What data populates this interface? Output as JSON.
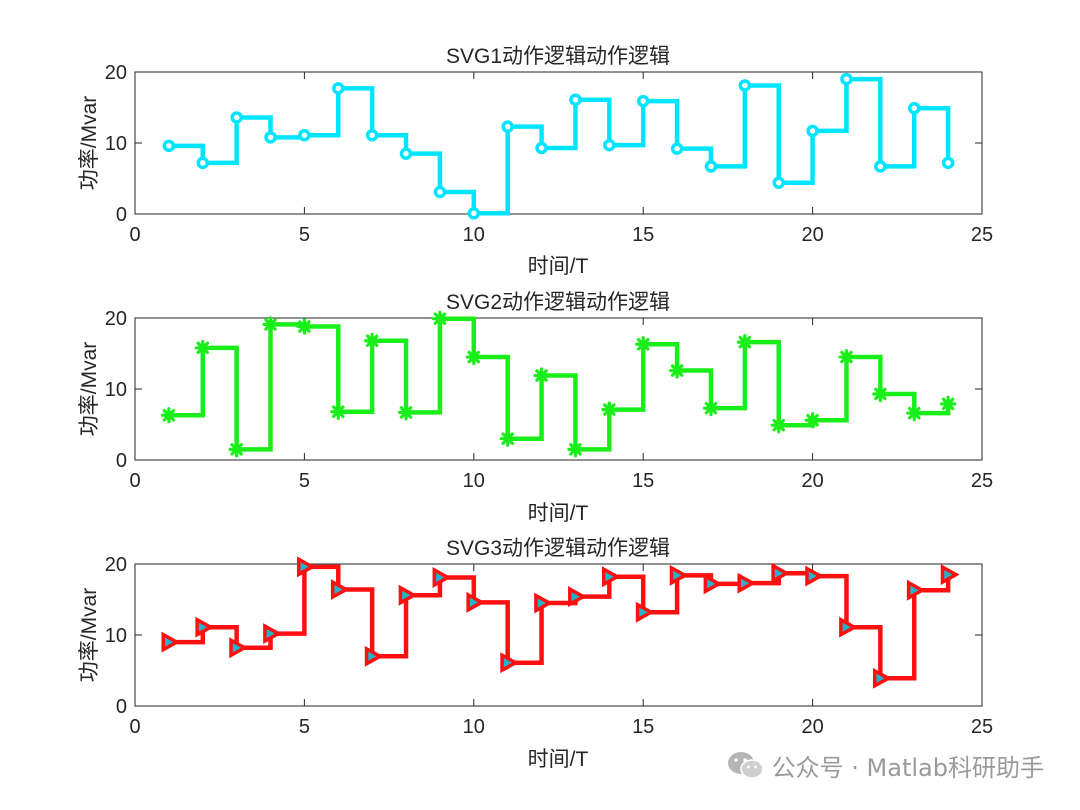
{
  "chart_data": [
    {
      "type": "line",
      "title": "SVG1动作逻辑动作逻辑",
      "xlabel": "时间/T",
      "ylabel": "功率/Mvar",
      "xlim": [
        0,
        25
      ],
      "ylim": [
        0,
        20
      ],
      "xticks": [
        0,
        5,
        10,
        15,
        20,
        25
      ],
      "yticks": [
        0,
        10,
        20
      ],
      "step": true,
      "color": "#00e5ff",
      "marker": "circle",
      "x": [
        1,
        2,
        3,
        4,
        5,
        6,
        7,
        8,
        9,
        10,
        11,
        12,
        13,
        14,
        15,
        16,
        17,
        18,
        19,
        20,
        21,
        22,
        23,
        24
      ],
      "values": [
        9.6,
        7.2,
        13.6,
        10.8,
        11.1,
        17.7,
        11.1,
        8.5,
        3.1,
        0.1,
        12.3,
        9.3,
        16.1,
        9.7,
        15.9,
        9.2,
        6.7,
        18.1,
        4.4,
        11.7,
        19.0,
        6.7,
        14.9,
        7.2
      ]
    },
    {
      "type": "line",
      "title": "SVG2动作逻辑动作逻辑",
      "xlabel": "时间/T",
      "ylabel": "功率/Mvar",
      "xlim": [
        0,
        25
      ],
      "ylim": [
        0,
        20
      ],
      "xticks": [
        0,
        5,
        10,
        15,
        20,
        25
      ],
      "yticks": [
        0,
        10,
        20
      ],
      "step": true,
      "color": "#1aee1a",
      "marker": "asterisk",
      "x": [
        1,
        2,
        3,
        4,
        5,
        6,
        7,
        8,
        9,
        10,
        11,
        12,
        13,
        14,
        15,
        16,
        17,
        18,
        19,
        20,
        21,
        22,
        23,
        24
      ],
      "values": [
        6.3,
        15.8,
        1.5,
        19.1,
        18.8,
        6.8,
        16.8,
        6.7,
        19.9,
        14.5,
        3.0,
        11.9,
        1.5,
        7.1,
        16.3,
        12.6,
        7.3,
        16.6,
        4.9,
        5.6,
        14.5,
        9.3,
        6.6,
        7.9
      ]
    },
    {
      "type": "line",
      "title": "SVG3动作逻辑动作逻辑",
      "xlabel": "时间/T",
      "ylabel": "功率/Mvar",
      "xlim": [
        0,
        25
      ],
      "ylim": [
        0,
        20
      ],
      "xticks": [
        0,
        5,
        10,
        15,
        20,
        25
      ],
      "yticks": [
        0,
        10,
        20
      ],
      "step": true,
      "color": "#ff1010",
      "marker": "triangle-right",
      "marker_fill": "#27b2cc",
      "x": [
        1,
        2,
        3,
        4,
        5,
        6,
        7,
        8,
        9,
        10,
        11,
        12,
        13,
        14,
        15,
        16,
        17,
        18,
        19,
        20,
        21,
        22,
        23,
        24
      ],
      "values": [
        9.0,
        11.1,
        8.2,
        10.2,
        19.6,
        16.4,
        7.0,
        15.6,
        18.1,
        14.6,
        6.1,
        14.5,
        15.4,
        18.2,
        13.2,
        18.4,
        17.2,
        17.3,
        18.7,
        18.3,
        11.1,
        3.9,
        16.3,
        18.5
      ]
    }
  ],
  "watermark": {
    "text": "公众号 · Matlab科研助手",
    "icon": "wechat-icon"
  }
}
